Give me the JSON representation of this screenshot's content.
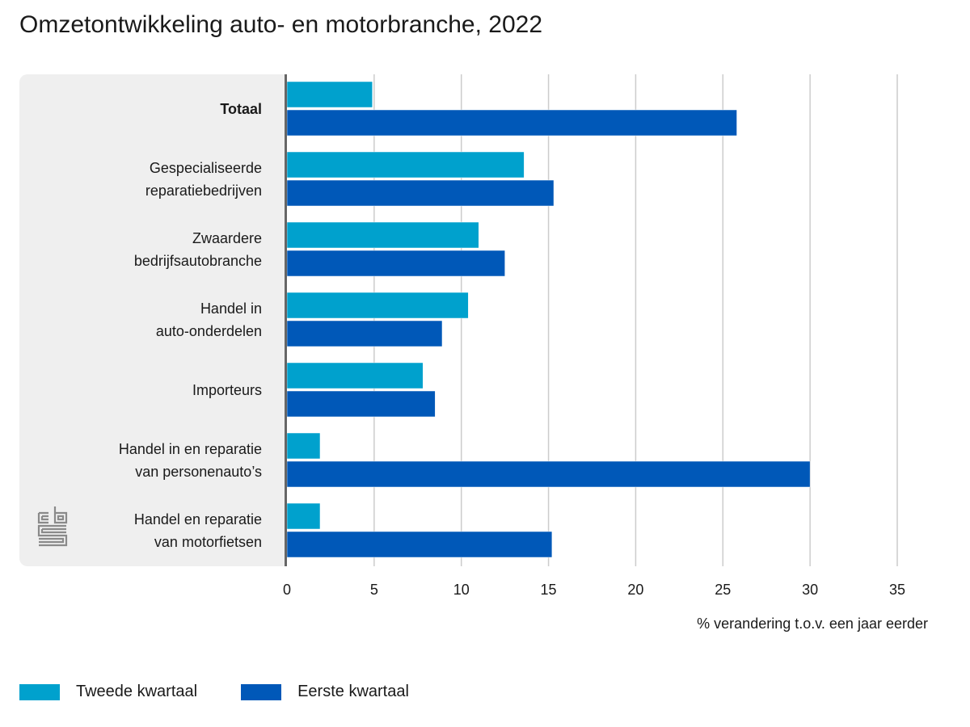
{
  "chart_data": {
    "type": "bar",
    "orientation": "horizontal",
    "title": "Omzetontwikkeling auto- en motorbranche, 2022",
    "xlabel": "% verandering t.o.v. een jaar eerder",
    "ylabel": "",
    "xlim": [
      0,
      35
    ],
    "xticks": [
      "0",
      "5",
      "10",
      "15",
      "20",
      "25",
      "30",
      "35"
    ],
    "grid": true,
    "legend_position": "bottom-left",
    "categories": [
      {
        "label": [
          "Totaal"
        ],
        "bold": true
      },
      {
        "label": [
          "Gespecialiseerde",
          "reparatiebedrijven"
        ],
        "bold": false
      },
      {
        "label": [
          "Zwaardere",
          "bedrijfsautobranche"
        ],
        "bold": false
      },
      {
        "label": [
          "Handel in",
          "auto-onderdelen"
        ],
        "bold": false
      },
      {
        "label": [
          "Importeurs"
        ],
        "bold": false
      },
      {
        "label": [
          "Handel in en reparatie",
          "van personenauto’s"
        ],
        "bold": false
      },
      {
        "label": [
          "Handel en reparatie",
          "van motorfietsen"
        ],
        "bold": false
      }
    ],
    "series": [
      {
        "name": "Tweede kwartaal",
        "color": "#00a1cd",
        "values": [
          4.9,
          13.6,
          11.0,
          10.4,
          7.8,
          1.9,
          1.9
        ]
      },
      {
        "name": "Eerste kwartaal",
        "color": "#0058b8",
        "values": [
          25.8,
          15.3,
          12.5,
          8.9,
          8.5,
          30.0,
          15.2
        ]
      }
    ]
  },
  "branding": {
    "logo_icon": "cbs-logo-icon"
  }
}
